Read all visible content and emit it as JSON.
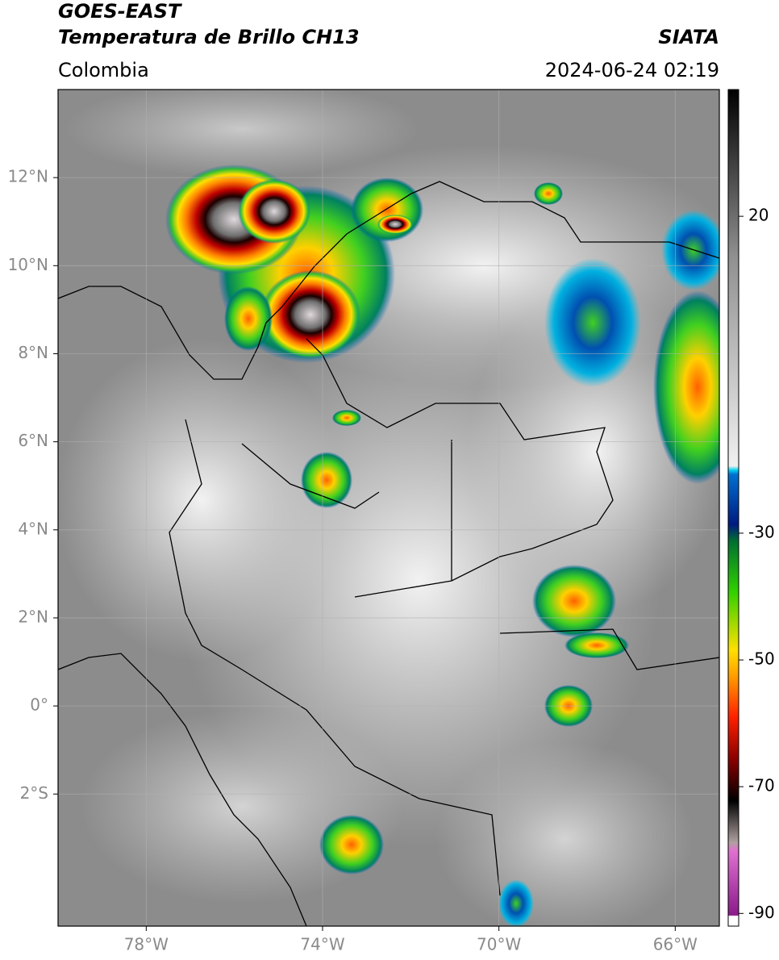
{
  "header": {
    "satellite": "GOES-EAST",
    "product": "Temperatura de Brillo CH13",
    "source": "SIATA",
    "region": "Colombia",
    "datetime": "2024-06-24 02:19"
  },
  "map": {
    "lonlim": [
      -80,
      -65
    ],
    "latlim": [
      -5,
      14
    ],
    "lon_ticks": [
      {
        "value": -78,
        "label": "78°W"
      },
      {
        "value": -74,
        "label": "74°W"
      },
      {
        "value": -70,
        "label": "70°W"
      },
      {
        "value": -66,
        "label": "66°W"
      }
    ],
    "lat_ticks": [
      {
        "value": 12,
        "label": "12°N"
      },
      {
        "value": 10,
        "label": "10°N"
      },
      {
        "value": 8,
        "label": "8°N"
      },
      {
        "value": 6,
        "label": "6°N"
      },
      {
        "value": 4,
        "label": "4°N"
      },
      {
        "value": 2,
        "label": "2°N"
      },
      {
        "value": 0,
        "label": "0°"
      },
      {
        "value": -2,
        "label": "2°S"
      }
    ]
  },
  "colorbar": {
    "lim": [
      -92,
      40
    ],
    "ticks": [
      20,
      -30,
      -50,
      -70,
      -90
    ]
  }
}
